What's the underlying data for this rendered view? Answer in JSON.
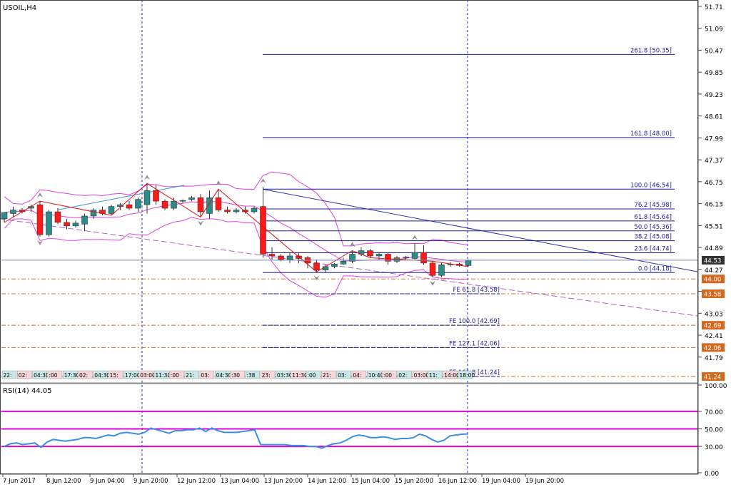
{
  "symbol_label": "USOIL,H4",
  "rsi_label": "RSI(14) 44.05",
  "colors": {
    "bull": "#2e8b8b",
    "bear": "#ff1a1a",
    "bollinger": "#e040e0",
    "fib": "#1a1aa0",
    "level": "#d2691e",
    "rsi_line": "#3a8ee6",
    "rsi_level": "#e000e0",
    "zigzag": "#e01010",
    "trend": "#3030b0",
    "channel": "#b060c0",
    "axis": "#444444",
    "price_tag": "#333333"
  },
  "chart_data": [
    {
      "type": "candlestick",
      "title": "USOIL,H4",
      "x_ticks": [
        "7 Jun 2017",
        "8 Jun 12:00",
        "9 Jun 04:00",
        "9 Jun 20:00",
        "12 Jun 12:00",
        "13 Jun 04:00",
        "13 Jun 20:00",
        "14 Jun 12:00",
        "15 Jun 04:00",
        "15 Jun 20:00",
        "16 Jun 12:00",
        "19 Jun 04:00",
        "19 Jun 20:00"
      ],
      "y_ticks": [
        "51.71",
        "51.09",
        "50.47",
        "49.85",
        "49.23",
        "48.61",
        "47.99",
        "47.37",
        "46.75",
        "46.13",
        "45.51",
        "44.89",
        "44.27",
        "43.65",
        "43.03",
        "42.41",
        "41.79"
      ],
      "ylim": [
        41.1,
        51.85
      ],
      "current_price": "44.53",
      "candles": [
        {
          "o": 45.7,
          "h": 45.85,
          "l": 45.6,
          "c": 45.88
        },
        {
          "o": 45.85,
          "h": 46.05,
          "l": 45.75,
          "c": 45.95
        },
        {
          "o": 45.95,
          "h": 46.0,
          "l": 45.85,
          "c": 45.9
        },
        {
          "o": 46.0,
          "h": 46.1,
          "l": 45.9,
          "c": 46.05
        },
        {
          "o": 46.1,
          "h": 46.2,
          "l": 45.2,
          "c": 45.25
        },
        {
          "o": 45.25,
          "h": 45.95,
          "l": 45.2,
          "c": 45.9
        },
        {
          "o": 45.9,
          "h": 46.0,
          "l": 45.55,
          "c": 45.6
        },
        {
          "o": 45.6,
          "h": 45.7,
          "l": 45.4,
          "c": 45.5
        },
        {
          "o": 45.5,
          "h": 45.65,
          "l": 45.45,
          "c": 45.58
        },
        {
          "o": 45.55,
          "h": 45.85,
          "l": 45.35,
          "c": 45.78
        },
        {
          "o": 45.78,
          "h": 46.0,
          "l": 45.7,
          "c": 45.95
        },
        {
          "o": 45.95,
          "h": 46.05,
          "l": 45.8,
          "c": 45.85
        },
        {
          "o": 45.85,
          "h": 46.1,
          "l": 45.8,
          "c": 46.05
        },
        {
          "o": 46.05,
          "h": 46.15,
          "l": 45.95,
          "c": 46.1
        },
        {
          "o": 46.1,
          "h": 46.2,
          "l": 45.95,
          "c": 46.0
        },
        {
          "o": 46.0,
          "h": 46.3,
          "l": 45.9,
          "c": 46.25
        },
        {
          "o": 46.1,
          "h": 46.7,
          "l": 45.85,
          "c": 46.5
        },
        {
          "o": 46.5,
          "h": 46.65,
          "l": 46.1,
          "c": 46.2
        },
        {
          "o": 46.2,
          "h": 46.25,
          "l": 45.95,
          "c": 46.0
        },
        {
          "o": 46.0,
          "h": 46.3,
          "l": 45.95,
          "c": 46.2
        },
        {
          "o": 46.2,
          "h": 46.25,
          "l": 46.15,
          "c": 46.22
        },
        {
          "o": 46.25,
          "h": 46.35,
          "l": 46.2,
          "c": 46.3
        },
        {
          "o": 46.3,
          "h": 46.4,
          "l": 45.75,
          "c": 45.9
        },
        {
          "o": 45.85,
          "h": 46.5,
          "l": 45.7,
          "c": 46.3
        },
        {
          "o": 46.3,
          "h": 46.54,
          "l": 45.9,
          "c": 45.95
        },
        {
          "o": 45.95,
          "h": 46.05,
          "l": 45.85,
          "c": 45.9
        },
        {
          "o": 45.9,
          "h": 46.0,
          "l": 45.85,
          "c": 45.95
        },
        {
          "o": 45.95,
          "h": 46.05,
          "l": 45.85,
          "c": 45.9
        },
        {
          "o": 45.9,
          "h": 46.05,
          "l": 45.85,
          "c": 46.0
        },
        {
          "o": 46.05,
          "h": 46.6,
          "l": 44.6,
          "c": 44.7
        },
        {
          "o": 44.7,
          "h": 44.9,
          "l": 44.55,
          "c": 44.65
        },
        {
          "o": 44.65,
          "h": 44.7,
          "l": 44.5,
          "c": 44.55
        },
        {
          "o": 44.55,
          "h": 44.75,
          "l": 44.45,
          "c": 44.65
        },
        {
          "o": 44.65,
          "h": 44.75,
          "l": 44.45,
          "c": 44.58
        },
        {
          "o": 44.6,
          "h": 44.65,
          "l": 44.3,
          "c": 44.45
        },
        {
          "o": 44.45,
          "h": 44.55,
          "l": 44.2,
          "c": 44.25
        },
        {
          "o": 44.25,
          "h": 44.4,
          "l": 44.18,
          "c": 44.35
        },
        {
          "o": 44.35,
          "h": 44.45,
          "l": 44.3,
          "c": 44.42
        },
        {
          "o": 44.42,
          "h": 44.6,
          "l": 44.4,
          "c": 44.5
        },
        {
          "o": 44.5,
          "h": 44.8,
          "l": 44.45,
          "c": 44.7
        },
        {
          "o": 44.7,
          "h": 44.9,
          "l": 44.65,
          "c": 44.8
        },
        {
          "o": 44.8,
          "h": 44.85,
          "l": 44.6,
          "c": 44.65
        },
        {
          "o": 44.65,
          "h": 44.75,
          "l": 44.55,
          "c": 44.7
        },
        {
          "o": 44.7,
          "h": 44.75,
          "l": 44.4,
          "c": 44.5
        },
        {
          "o": 44.5,
          "h": 44.65,
          "l": 44.45,
          "c": 44.6
        },
        {
          "o": 44.6,
          "h": 44.65,
          "l": 44.55,
          "c": 44.62
        },
        {
          "o": 44.58,
          "h": 45.0,
          "l": 44.55,
          "c": 44.75
        },
        {
          "o": 44.75,
          "h": 44.95,
          "l": 44.4,
          "c": 44.45
        },
        {
          "o": 44.45,
          "h": 44.5,
          "l": 44.05,
          "c": 44.1
        },
        {
          "o": 44.1,
          "h": 44.45,
          "l": 44.05,
          "c": 44.4
        },
        {
          "o": 44.4,
          "h": 44.48,
          "l": 44.35,
          "c": 44.42
        },
        {
          "o": 44.42,
          "h": 44.46,
          "l": 44.35,
          "c": 44.38
        },
        {
          "o": 44.38,
          "h": 44.55,
          "l": 44.35,
          "c": 44.53
        }
      ],
      "fibonacci": [
        {
          "label": "261.8 [50.35]",
          "price": 50.35
        },
        {
          "label": "161.8 [48.00]",
          "price": 48.0
        },
        {
          "label": "100.0 [46.54]",
          "price": 46.54
        },
        {
          "label": "76.2 [45.98]",
          "price": 45.98
        },
        {
          "label": "61.8 [45.64]",
          "price": 45.64
        },
        {
          "label": "50.0 [45.36]",
          "price": 45.36
        },
        {
          "label": "38.2 [45.08]",
          "price": 45.08
        },
        {
          "label": "23.6 [44.74]",
          "price": 44.74
        },
        {
          "label": "0.0 [44.18]",
          "price": 44.18
        }
      ],
      "fib_expansion": [
        {
          "label": "FE 61.8 [43.58]",
          "price": 43.58
        },
        {
          "label": "FE 100.0 [42.69]",
          "price": 42.69
        },
        {
          "label": "FE 127.1 [42.06]",
          "price": 42.06
        },
        {
          "label": "FE 161.8 [41.24]",
          "price": 41.24
        }
      ],
      "levels": [
        {
          "label": "44.00",
          "price": 44.0
        },
        {
          "label": "43.58",
          "price": 43.58
        },
        {
          "label": "42.69",
          "price": 42.69
        },
        {
          "label": "42.06",
          "price": 42.06
        },
        {
          "label": "41.24",
          "price": 41.24
        }
      ],
      "session_tags": [
        "22:",
        "02:",
        "04:30",
        ":00",
        "17:30",
        "02:",
        "04:30",
        "15:",
        "17:00",
        "03:00",
        "11:30",
        ":00",
        "21:",
        "03:",
        "04:30",
        ":30",
        ":38",
        "23:",
        "03:30",
        "11:30",
        ":00",
        "21:",
        "03:",
        "04:",
        "10:40",
        ":00",
        "02:",
        "03:00",
        "11:",
        "14:00",
        "18:00"
      ]
    },
    {
      "type": "line",
      "title": "RSI(14) 44.05",
      "y_ticks": [
        "100.00",
        "70.00",
        "50.00",
        "30.00",
        "0.00"
      ],
      "ylim": [
        0,
        100
      ],
      "levels": [
        70,
        50,
        30
      ],
      "values": [
        30,
        33,
        34,
        32,
        33,
        34,
        29,
        35,
        38,
        37,
        36,
        37,
        38,
        40,
        40,
        39,
        41,
        43,
        42,
        45,
        46,
        45,
        44,
        46,
        51,
        49,
        47,
        45,
        48,
        48,
        49,
        49,
        51,
        47,
        51,
        48,
        46,
        46,
        46,
        47,
        48,
        49,
        32,
        32,
        32,
        32,
        32,
        31,
        31,
        31,
        30,
        30,
        28,
        31,
        33,
        34,
        37,
        41,
        43,
        42,
        40,
        40,
        41,
        40,
        38,
        39,
        39,
        40,
        44,
        42,
        38,
        35,
        37,
        42,
        43,
        44,
        44.05
      ]
    }
  ]
}
